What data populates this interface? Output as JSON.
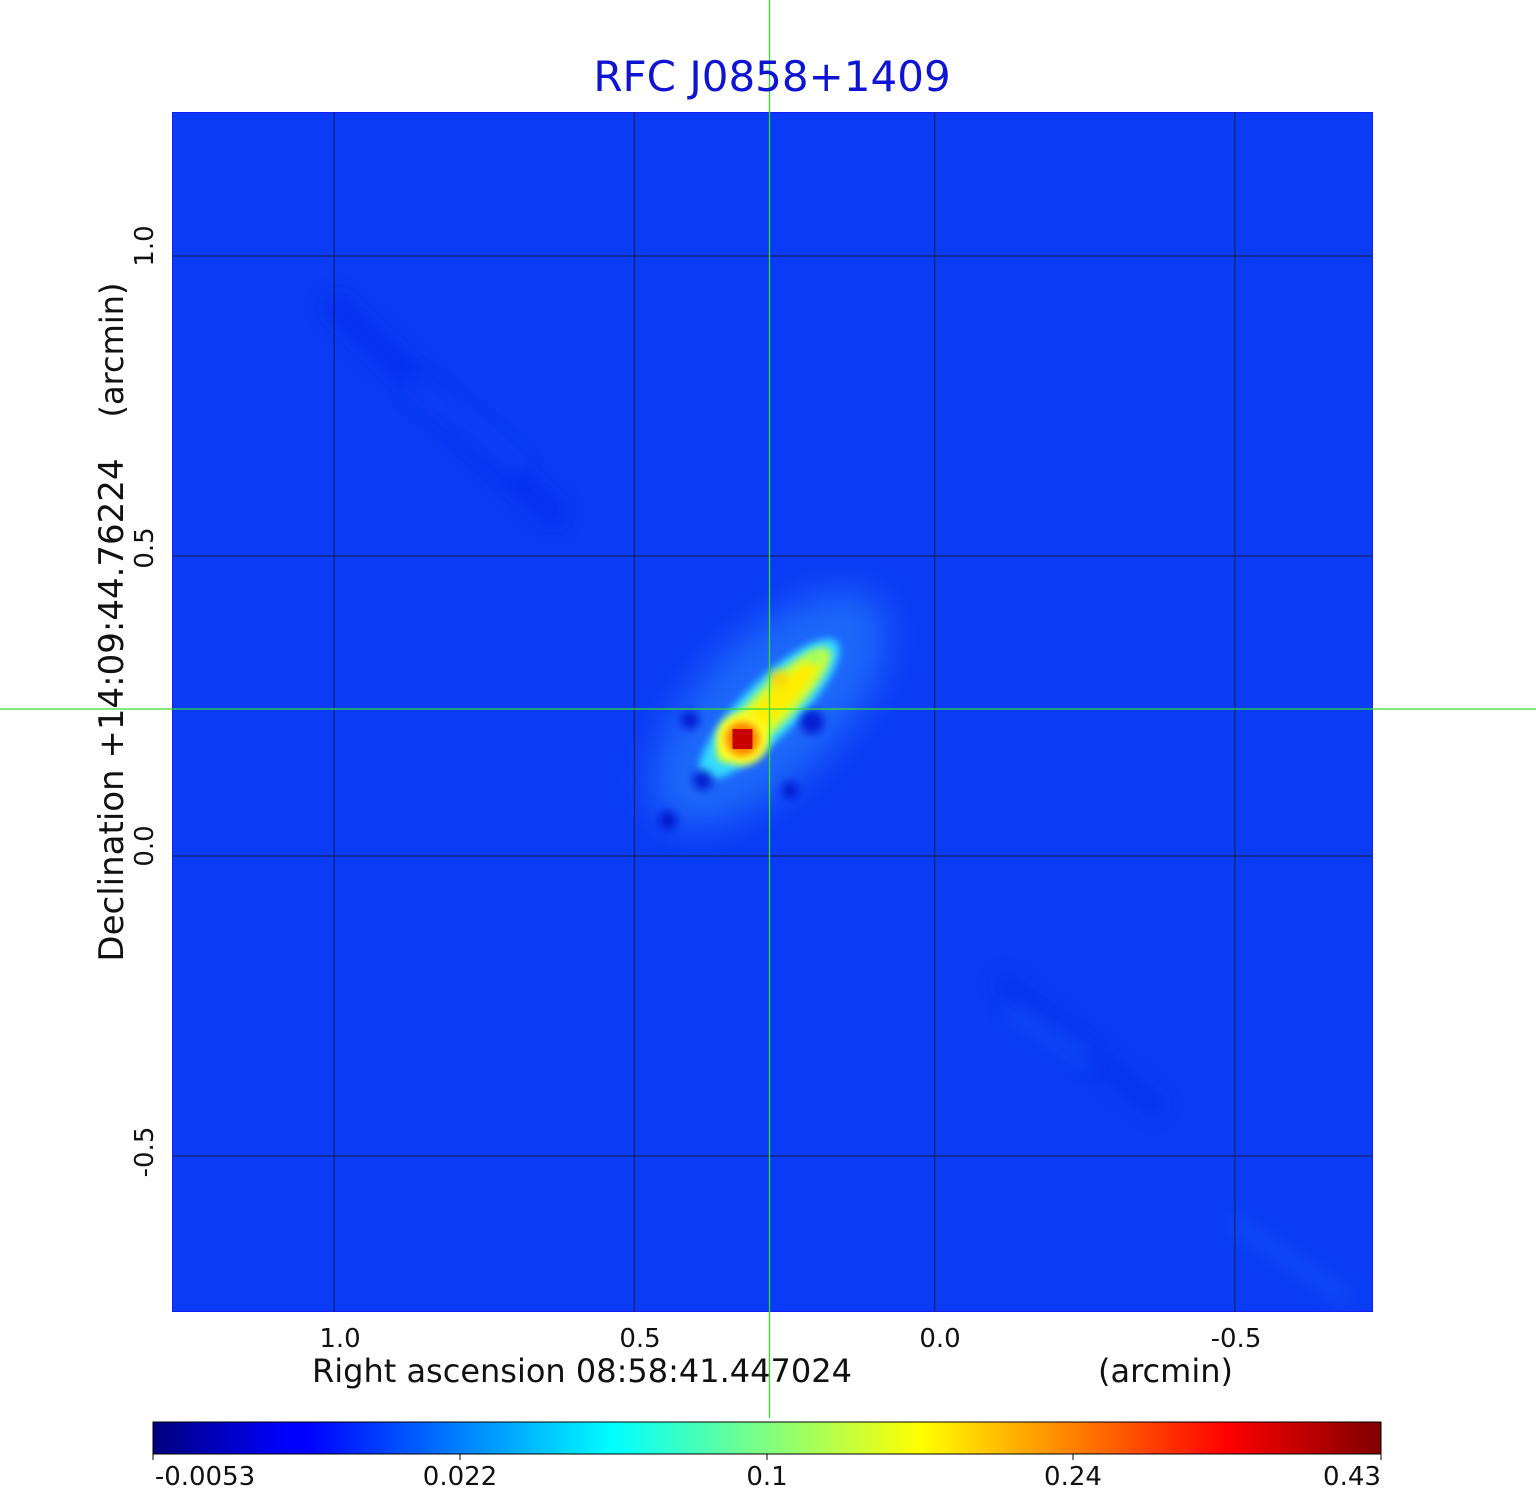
{
  "chart_data": {
    "type": "heatmap",
    "title": "RFC J0858+1409",
    "colormap": "jet",
    "x_axis": {
      "label": "Right ascension  08:58:41.447024",
      "unit": "(arcmin)",
      "ticks": [
        1.0,
        0.5,
        0.0,
        -0.5
      ],
      "tick_labels": [
        "1.0",
        "0.5",
        "0.0",
        "-0.5"
      ],
      "range": [
        1.27,
        -0.73
      ]
    },
    "y_axis": {
      "label": "Declination  +14:09:44.76224",
      "unit": "(arcmin)",
      "ticks": [
        1.0,
        0.5,
        0.0,
        -0.5
      ],
      "tick_labels": [
        "1.0",
        "0.5",
        "0.0",
        "-0.5"
      ],
      "range": [
        -0.76,
        1.24
      ]
    },
    "grid": true,
    "crosshair": {
      "x": 0.275,
      "y": 0.245,
      "color": "#33dd33"
    },
    "colorbar": {
      "ticks": [
        "-0.0053",
        "0.022",
        "0.1",
        "0.24",
        "0.43"
      ],
      "range": [
        -0.0053,
        0.43
      ]
    },
    "features": [
      {
        "x": 0.32,
        "y": 0.195,
        "value": 0.43
      },
      {
        "x": 0.26,
        "y": 0.295,
        "value": 0.24
      },
      {
        "x": 0.2,
        "y": 0.33,
        "value": 0.1
      }
    ]
  }
}
